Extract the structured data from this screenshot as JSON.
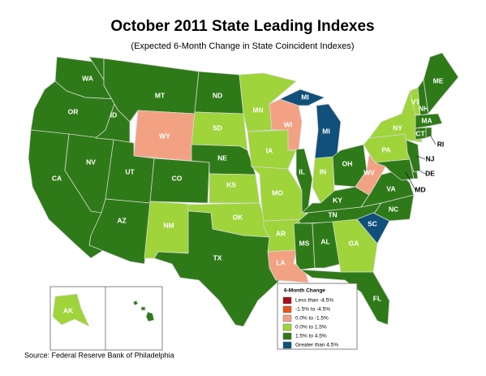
{
  "title": "October 2011 State Leading Indexes",
  "subtitle": "(Expected 6-Month Change in State Coincident Indexes)",
  "states": [
    {
      "label": "WA",
      "class": 4
    },
    {
      "label": "OR",
      "class": 4
    },
    {
      "label": "CA",
      "class": 4
    },
    {
      "label": "NV",
      "class": 4
    },
    {
      "label": "ID",
      "class": 4
    },
    {
      "label": "MT",
      "class": 4
    },
    {
      "label": "WY",
      "class": 2
    },
    {
      "label": "UT",
      "class": 4
    },
    {
      "label": "CO",
      "class": 4
    },
    {
      "label": "AZ",
      "class": 4
    },
    {
      "label": "NM",
      "class": 3
    },
    {
      "label": "ND",
      "class": 4
    },
    {
      "label": "SD",
      "class": 3
    },
    {
      "label": "NE",
      "class": 4
    },
    {
      "label": "KS",
      "class": 3
    },
    {
      "label": "OK",
      "class": 3
    },
    {
      "label": "TX",
      "class": 4
    },
    {
      "label": "MN",
      "class": 3
    },
    {
      "label": "IA",
      "class": 3
    },
    {
      "label": "MO",
      "class": 3
    },
    {
      "label": "AR",
      "class": 3
    },
    {
      "label": "LA",
      "class": 2
    },
    {
      "label": "WI",
      "class": 2
    },
    {
      "label": "IL",
      "class": 4
    },
    {
      "label": "MI",
      "class": 5
    },
    {
      "label": "MI",
      "class": 5
    },
    {
      "label": "IN",
      "class": 3
    },
    {
      "label": "OH",
      "class": 4
    },
    {
      "label": "KY",
      "class": 4
    },
    {
      "label": "TN",
      "class": 4
    },
    {
      "label": "MS",
      "class": 4
    },
    {
      "label": "AL",
      "class": 4
    },
    {
      "label": "GA",
      "class": 3
    },
    {
      "label": "FL",
      "class": 4
    },
    {
      "label": "NC",
      "class": 4
    },
    {
      "label": "SC",
      "class": 5
    },
    {
      "label": "VA",
      "class": 4
    },
    {
      "label": "WV",
      "class": 2
    },
    {
      "label": "MD",
      "class": 4
    },
    {
      "label": "DE",
      "class": 4
    },
    {
      "label": "NJ",
      "class": 4
    },
    {
      "label": "PA",
      "class": 3
    },
    {
      "label": "NY",
      "class": 3
    },
    {
      "label": "VT",
      "class": 3
    },
    {
      "label": "NH",
      "class": 4
    },
    {
      "label": "ME",
      "class": 4
    },
    {
      "label": "MA",
      "class": 4
    },
    {
      "label": "CT",
      "class": 4
    },
    {
      "label": "RI",
      "class": 4
    },
    {
      "label": "AK",
      "class": 3
    },
    {
      "label": "HI",
      "class": 4
    }
  ],
  "legend": {
    "title": "6-Month Change",
    "items": [
      {
        "label": "Less than -4.5%",
        "color": "#a50f15"
      },
      {
        "label": "-1.5% to -4.5%",
        "color": "#e8541d"
      },
      {
        "label": "0.0% to -1.5%",
        "color": "#f2a283"
      },
      {
        "label": "0.0% to  1.5%",
        "color": "#9fd43a"
      },
      {
        "label": "1.5% to  4.5%",
        "color": "#2f7a18"
      },
      {
        "label": "Greater than 4.5%",
        "color": "#10507a"
      }
    ]
  },
  "source": "Source: Federal Reserve Bank of Philadelphia"
}
